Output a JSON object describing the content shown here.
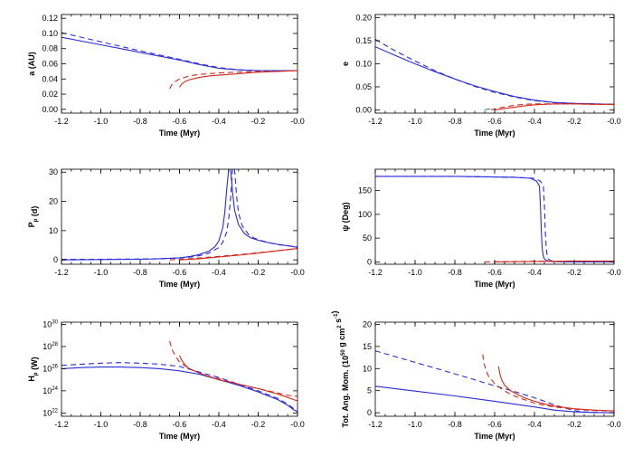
{
  "colors": {
    "blue": "#2b2bd9",
    "red": "#d02a1e"
  },
  "chart_data": [
    {
      "id": "a",
      "type": "line",
      "ylabel": "a (AU)",
      "xlabel": "Time (Myr)",
      "xlim": [
        -1.2,
        0.0
      ],
      "ylim": [
        -0.005,
        0.125
      ],
      "xticks": [
        -1.2,
        -1.0,
        -0.8,
        -0.6,
        -0.4,
        -0.2,
        0.0
      ],
      "xtick_labels": [
        "-1.2",
        "-1.0",
        "-0.8",
        "-0.6",
        "-0.4",
        "-0.2",
        "-0.0"
      ],
      "yticks": [
        0.0,
        0.02,
        0.04,
        0.06,
        0.08,
        0.1,
        0.12
      ],
      "ytick_labels": [
        "0.00",
        "0.02",
        "0.04",
        "0.06",
        "0.08",
        "0.10",
        "0.12"
      ],
      "yscale": "linear",
      "series": [
        {
          "name": "blue solid",
          "color": "blue",
          "dash": false,
          "x": [
            -1.2,
            -1.0,
            -0.8,
            -0.6,
            -0.5,
            -0.4,
            -0.3,
            -0.2,
            -0.1,
            0.0
          ],
          "y": [
            0.095,
            0.085,
            0.075,
            0.065,
            0.059,
            0.054,
            0.052,
            0.051,
            0.051,
            0.051
          ]
        },
        {
          "name": "blue dashed",
          "color": "blue",
          "dash": true,
          "x": [
            -1.2,
            -1.0,
            -0.8,
            -0.6,
            -0.5,
            -0.4,
            -0.3,
            -0.2,
            -0.1,
            0.0
          ],
          "y": [
            0.101,
            0.089,
            0.077,
            0.066,
            0.06,
            0.055,
            0.052,
            0.051,
            0.051,
            0.051
          ]
        },
        {
          "name": "red solid",
          "color": "red",
          "dash": false,
          "x": [
            -0.6,
            -0.59,
            -0.57,
            -0.55,
            -0.5,
            -0.45,
            -0.4,
            -0.3,
            -0.2,
            -0.1,
            0.0
          ],
          "y": [
            0.029,
            0.033,
            0.037,
            0.039,
            0.042,
            0.044,
            0.045,
            0.047,
            0.049,
            0.05,
            0.051
          ]
        },
        {
          "name": "red dashed",
          "color": "red",
          "dash": true,
          "x": [
            -0.65,
            -0.64,
            -0.62,
            -0.6,
            -0.55,
            -0.5,
            -0.45,
            -0.4,
            -0.3,
            -0.2,
            -0.1,
            0.0
          ],
          "y": [
            0.027,
            0.032,
            0.037,
            0.04,
            0.044,
            0.046,
            0.047,
            0.048,
            0.049,
            0.05,
            0.05,
            0.051
          ]
        }
      ]
    },
    {
      "id": "e",
      "type": "line",
      "ylabel": "e",
      "xlabel": "Time (Myr)",
      "xlim": [
        -1.2,
        0.0
      ],
      "ylim": [
        -0.007,
        0.207
      ],
      "xticks": [
        -1.2,
        -1.0,
        -0.8,
        -0.6,
        -0.4,
        -0.2,
        0.0
      ],
      "xtick_labels": [
        "-1.2",
        "-1.0",
        "-0.8",
        "-0.6",
        "-0.4",
        "-0.2",
        "-0.0"
      ],
      "yticks": [
        0.0,
        0.05,
        0.1,
        0.15,
        0.2
      ],
      "ytick_labels": [
        "0.00",
        "0.05",
        "0.10",
        "0.15",
        "0.20"
      ],
      "yscale": "linear",
      "series": [
        {
          "name": "blue solid",
          "color": "blue",
          "dash": false,
          "x": [
            -1.2,
            -1.1,
            -1.0,
            -0.9,
            -0.8,
            -0.7,
            -0.6,
            -0.5,
            -0.4,
            -0.3,
            -0.2,
            -0.1,
            0.0
          ],
          "y": [
            0.137,
            0.118,
            0.1,
            0.083,
            0.067,
            0.052,
            0.04,
            0.029,
            0.021,
            0.016,
            0.014,
            0.013,
            0.012
          ]
        },
        {
          "name": "blue dashed",
          "color": "blue",
          "dash": true,
          "x": [
            -1.2,
            -1.1,
            -1.0,
            -0.9,
            -0.8,
            -0.7,
            -0.6,
            -0.5,
            -0.4,
            -0.3,
            -0.2,
            -0.1,
            0.0
          ],
          "y": [
            0.153,
            0.128,
            0.106,
            0.085,
            0.067,
            0.051,
            0.038,
            0.028,
            0.02,
            0.016,
            0.014,
            0.013,
            0.012
          ]
        },
        {
          "name": "red solid",
          "color": "red",
          "dash": false,
          "x": [
            -0.6,
            -0.55,
            -0.5,
            -0.45,
            -0.4,
            -0.3,
            -0.2,
            -0.1,
            0.0
          ],
          "y": [
            0.0,
            0.003,
            0.006,
            0.009,
            0.011,
            0.013,
            0.013,
            0.012,
            0.012
          ]
        },
        {
          "name": "red dashed",
          "color": "red",
          "dash": true,
          "x": [
            -0.62,
            -0.58,
            -0.54,
            -0.5,
            -0.45,
            -0.4,
            -0.3,
            -0.2,
            -0.1,
            0.0
          ],
          "y": [
            0.0,
            0.004,
            0.007,
            0.01,
            0.012,
            0.013,
            0.013,
            0.013,
            0.012,
            0.012
          ]
        },
        {
          "name": "green dashed",
          "color": "#2e8b57",
          "dash": true,
          "x": [
            -0.65,
            -0.63,
            -0.61
          ],
          "y": [
            0.0,
            0.002,
            0.004
          ]
        }
      ]
    },
    {
      "id": "P",
      "type": "line",
      "ylabel": "P_p (d)",
      "xlabel": "Time (Myr)",
      "xlim": [
        -1.2,
        0.0
      ],
      "ylim": [
        -1.5,
        31
      ],
      "xticks": [
        -1.2,
        -1.0,
        -0.8,
        -0.6,
        -0.4,
        -0.2,
        0.0
      ],
      "xtick_labels": [
        "-1.2",
        "-1.0",
        "-0.8",
        "-0.6",
        "-0.4",
        "-0.2",
        "-0.0"
      ],
      "yticks": [
        0,
        10,
        20,
        30
      ],
      "ytick_labels": [
        "0",
        "10",
        "20",
        "30"
      ],
      "yscale": "linear",
      "series": [
        {
          "name": "blue solid",
          "color": "blue",
          "dash": false,
          "x": [
            -1.2,
            -1.0,
            -0.8,
            -0.7,
            -0.6,
            -0.55,
            -0.5,
            -0.45,
            -0.42,
            -0.4,
            -0.38,
            -0.37,
            -0.36,
            -0.35
          ],
          "y": [
            0.0,
            0.1,
            0.2,
            0.4,
            0.7,
            1.1,
            1.8,
            3.0,
            4.5,
            6.5,
            11.0,
            16.0,
            24.0,
            31.0
          ]
        },
        {
          "name": "blue solid right",
          "color": "blue",
          "dash": false,
          "x": [
            -0.34,
            -0.33,
            -0.32,
            -0.3,
            -0.27,
            -0.24,
            -0.2,
            -0.15,
            -0.1,
            -0.05,
            0.0
          ],
          "y": [
            31.0,
            23.0,
            17.0,
            12.0,
            9.0,
            7.6,
            6.7,
            5.9,
            5.3,
            4.8,
            4.3
          ]
        },
        {
          "name": "blue dashed",
          "color": "blue",
          "dash": true,
          "x": [
            -1.2,
            -1.0,
            -0.8,
            -0.7,
            -0.6,
            -0.55,
            -0.5,
            -0.45,
            -0.4,
            -0.38,
            -0.36,
            -0.35,
            -0.34,
            -0.33
          ],
          "y": [
            0.2,
            0.2,
            0.3,
            0.4,
            0.6,
            0.9,
            1.4,
            2.3,
            4.2,
            6.0,
            9.5,
            14.0,
            21.0,
            31.0
          ]
        },
        {
          "name": "blue dashed right",
          "color": "blue",
          "dash": true,
          "x": [
            -0.32,
            -0.31,
            -0.3,
            -0.28,
            -0.25,
            -0.22,
            -0.18,
            -0.14,
            -0.1,
            -0.05,
            0.0
          ],
          "y": [
            31.0,
            22.0,
            16.0,
            11.5,
            8.8,
            7.4,
            6.5,
            5.8,
            5.2,
            4.8,
            4.4
          ]
        },
        {
          "name": "red solid",
          "color": "red",
          "dash": false,
          "x": [
            -0.6,
            -0.5,
            -0.4,
            -0.3,
            -0.2,
            -0.1,
            0.0
          ],
          "y": [
            0.0,
            0.4,
            1.0,
            1.6,
            2.3,
            3.1,
            3.9
          ]
        },
        {
          "name": "red dashed",
          "color": "red",
          "dash": true,
          "x": [
            -0.65,
            -0.55,
            -0.45,
            -0.35,
            -0.25,
            -0.15,
            -0.05,
            0.0
          ],
          "y": [
            0.0,
            0.4,
            0.9,
            1.5,
            2.1,
            2.8,
            3.5,
            3.9
          ]
        }
      ]
    },
    {
      "id": "psi",
      "type": "line",
      "ylabel": "ψ (Deg)",
      "xlabel": "Time (Myr)",
      "xlim": [
        -1.2,
        0.0
      ],
      "ylim": [
        -5,
        195
      ],
      "xticks": [
        -1.2,
        -1.0,
        -0.8,
        -0.6,
        -0.4,
        -0.2,
        0.0
      ],
      "xtick_labels": [
        "-1.2",
        "-1.0",
        "-0.8",
        "-0.6",
        "-0.4",
        "-0.2",
        "-0.0"
      ],
      "yticks": [
        0,
        50,
        100,
        150
      ],
      "ytick_labels": [
        "0",
        "50",
        "100",
        "150"
      ],
      "yscale": "linear",
      "series": [
        {
          "name": "blue solid",
          "color": "blue",
          "dash": false,
          "x": [
            -1.2,
            -0.8,
            -0.5,
            -0.42,
            -0.39,
            -0.375,
            -0.37,
            -0.365,
            -0.36,
            -0.355,
            -0.35,
            -0.34,
            -0.32,
            -0.3,
            -0.2,
            -0.1,
            0.0
          ],
          "y": [
            180,
            180,
            178,
            176,
            170,
            160,
            120,
            60,
            25,
            12,
            6,
            3,
            1,
            0.5,
            0,
            0,
            0
          ]
        },
        {
          "name": "blue dashed",
          "color": "blue",
          "dash": true,
          "x": [
            -1.2,
            -0.8,
            -0.5,
            -0.4,
            -0.37,
            -0.355,
            -0.35,
            -0.345,
            -0.34,
            -0.335,
            -0.33,
            -0.32,
            -0.3,
            -0.28,
            -0.2,
            -0.1,
            0.0
          ],
          "y": [
            180,
            180,
            178,
            176,
            170,
            160,
            120,
            60,
            25,
            12,
            6,
            3,
            1,
            0.5,
            0,
            0,
            0
          ]
        },
        {
          "name": "red solid",
          "color": "red",
          "dash": false,
          "x": [
            -0.6,
            -0.4,
            -0.2,
            0.0
          ],
          "y": [
            0.0,
            1.0,
            1.5,
            1.5
          ]
        },
        {
          "name": "red dashed",
          "color": "red",
          "dash": true,
          "x": [
            -0.65,
            -0.4,
            -0.2,
            0.0
          ],
          "y": [
            0.0,
            1.2,
            1.8,
            1.8
          ]
        }
      ]
    },
    {
      "id": "H",
      "type": "line",
      "ylabel": "H_p (W)",
      "xlabel": "Time (Myr)",
      "xlim": [
        -1.2,
        0.0
      ],
      "ylim": [
        21.7,
        30.2
      ],
      "xticks": [
        -1.2,
        -1.0,
        -0.8,
        -0.6,
        -0.4,
        -0.2,
        0.0
      ],
      "xtick_labels": [
        "-1.2",
        "-1.0",
        "-0.8",
        "-0.6",
        "-0.4",
        "-0.2",
        "-0.0"
      ],
      "yticks": [
        22,
        24,
        26,
        28,
        30
      ],
      "ytick_labels": [
        "10^22",
        "10^24",
        "10^26",
        "10^28",
        "10^30"
      ],
      "yscale": "log10",
      "series": [
        {
          "name": "blue solid",
          "color": "blue",
          "dash": false,
          "x": [
            -1.2,
            -1.1,
            -1.0,
            -0.9,
            -0.8,
            -0.7,
            -0.6,
            -0.5,
            -0.4,
            -0.3,
            -0.2,
            -0.1,
            -0.05,
            -0.02,
            0.0
          ],
          "y": [
            26.0,
            26.1,
            26.15,
            26.15,
            26.1,
            26.0,
            25.8,
            25.5,
            25.0,
            24.5,
            23.9,
            23.2,
            22.7,
            22.3,
            22.1
          ]
        },
        {
          "name": "blue dashed",
          "color": "blue",
          "dash": true,
          "x": [
            -1.2,
            -1.0,
            -0.9,
            -0.8,
            -0.7,
            -0.6,
            -0.5,
            -0.4,
            -0.3,
            -0.2,
            -0.1,
            -0.05,
            -0.02,
            0.0
          ],
          "y": [
            26.3,
            26.5,
            26.55,
            26.5,
            26.4,
            26.2,
            25.7,
            25.2,
            24.6,
            24.0,
            23.3,
            22.8,
            22.4,
            22.2
          ]
        },
        {
          "name": "red solid",
          "color": "red",
          "dash": false,
          "x": [
            -0.6,
            -0.59,
            -0.57,
            -0.55,
            -0.5,
            -0.45,
            -0.4,
            -0.3,
            -0.2,
            -0.1,
            -0.05,
            -0.02,
            0.0
          ],
          "y": [
            27.2,
            26.8,
            26.3,
            26.0,
            25.6,
            25.3,
            25.0,
            24.6,
            24.2,
            23.7,
            23.4,
            23.2,
            23.1
          ]
        },
        {
          "name": "red dashed",
          "color": "red",
          "dash": true,
          "x": [
            -0.65,
            -0.64,
            -0.62,
            -0.6,
            -0.55,
            -0.5,
            -0.45,
            -0.4,
            -0.3,
            -0.2,
            -0.1,
            -0.05,
            0.0
          ],
          "y": [
            28.5,
            27.8,
            27.1,
            26.6,
            26.0,
            25.6,
            25.3,
            25.1,
            24.6,
            24.2,
            23.8,
            23.6,
            23.5
          ]
        }
      ]
    },
    {
      "id": "L",
      "type": "line",
      "ylabel": "Tot. Ang. Mom. (10^50 g cm^2 s^-1)",
      "xlabel": "Time (Myr)",
      "xlim": [
        -1.2,
        0.0
      ],
      "ylim": [
        -0.8,
        20.5
      ],
      "xticks": [
        -1.2,
        -1.0,
        -0.8,
        -0.6,
        -0.4,
        -0.2,
        0.0
      ],
      "xtick_labels": [
        "-1.2",
        "-1.0",
        "-0.8",
        "-0.6",
        "-0.4",
        "-0.2",
        "-0.0"
      ],
      "yticks": [
        0,
        5,
        10,
        15,
        20
      ],
      "ytick_labels": [
        "0",
        "5",
        "10",
        "15",
        "20"
      ],
      "yscale": "linear",
      "series": [
        {
          "name": "blue solid",
          "color": "blue",
          "dash": false,
          "x": [
            -1.2,
            -1.0,
            -0.8,
            -0.6,
            -0.4,
            -0.3,
            -0.2,
            -0.1,
            0.0
          ],
          "y": [
            6.0,
            4.9,
            3.8,
            2.6,
            1.3,
            0.6,
            0.2,
            0.05,
            0.0
          ]
        },
        {
          "name": "blue dashed",
          "color": "blue",
          "dash": true,
          "x": [
            -1.2,
            -1.0,
            -0.8,
            -0.6,
            -0.5,
            -0.4,
            -0.35,
            -0.3,
            -0.25,
            -0.2,
            -0.15,
            -0.1,
            0.0
          ],
          "y": [
            14.0,
            11.4,
            8.8,
            6.1,
            4.8,
            3.4,
            2.6,
            1.8,
            1.1,
            0.5,
            0.2,
            0.05,
            0.0
          ]
        },
        {
          "name": "red solid",
          "color": "red",
          "dash": false,
          "x": [
            -0.58,
            -0.575,
            -0.565,
            -0.55,
            -0.52,
            -0.48,
            -0.44,
            -0.4,
            -0.35,
            -0.3,
            -0.2,
            -0.1,
            0.0
          ],
          "y": [
            10.5,
            9.0,
            7.5,
            6.2,
            5.0,
            4.0,
            3.2,
            2.6,
            2.0,
            1.5,
            0.9,
            0.6,
            0.4
          ]
        },
        {
          "name": "red dashed",
          "color": "red",
          "dash": true,
          "x": [
            -0.66,
            -0.655,
            -0.645,
            -0.63,
            -0.6,
            -0.56,
            -0.52,
            -0.48,
            -0.44,
            -0.4,
            -0.35,
            -0.3,
            -0.2,
            -0.1,
            0.0
          ],
          "y": [
            13.2,
            11.5,
            9.8,
            8.2,
            6.6,
            5.2,
            4.2,
            3.4,
            2.8,
            2.2,
            1.7,
            1.3,
            0.8,
            0.5,
            0.4
          ]
        }
      ]
    }
  ]
}
